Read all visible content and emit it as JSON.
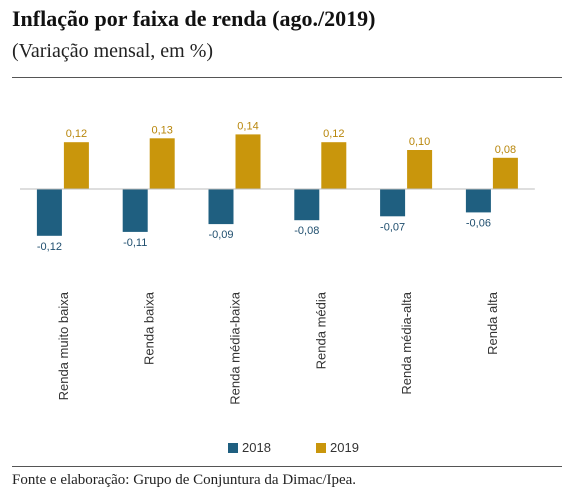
{
  "title": "Inflação por faixa de renda (ago./2019)",
  "subtitle": "(Variação mensal, em %)",
  "source": "Fonte e elaboração: Grupo de Conjuntura da Dimac/Ipea.",
  "chart_data": {
    "type": "bar",
    "categories": [
      "Renda muito baixa",
      "Renda baixa",
      "Renda média-baixa",
      "Renda média",
      "Renda média-alta",
      "Renda alta"
    ],
    "series": [
      {
        "name": "2018",
        "color": "#1f5f80",
        "values": [
          -0.12,
          -0.11,
          -0.09,
          -0.08,
          -0.07,
          -0.06
        ],
        "labels": [
          "-0,12",
          "-0,11",
          "-0,09",
          "-0,08",
          "-0,07",
          "-0,06"
        ]
      },
      {
        "name": "2019",
        "color": "#c9960c",
        "values": [
          0.12,
          0.13,
          0.14,
          0.12,
          0.1,
          0.08
        ],
        "labels": [
          "0,12",
          "0,13",
          "0,14",
          "0,12",
          "0,10",
          "0,08"
        ]
      }
    ],
    "ylim": [
      -0.15,
      0.16
    ],
    "grid": false,
    "legend": "bottom-center"
  }
}
